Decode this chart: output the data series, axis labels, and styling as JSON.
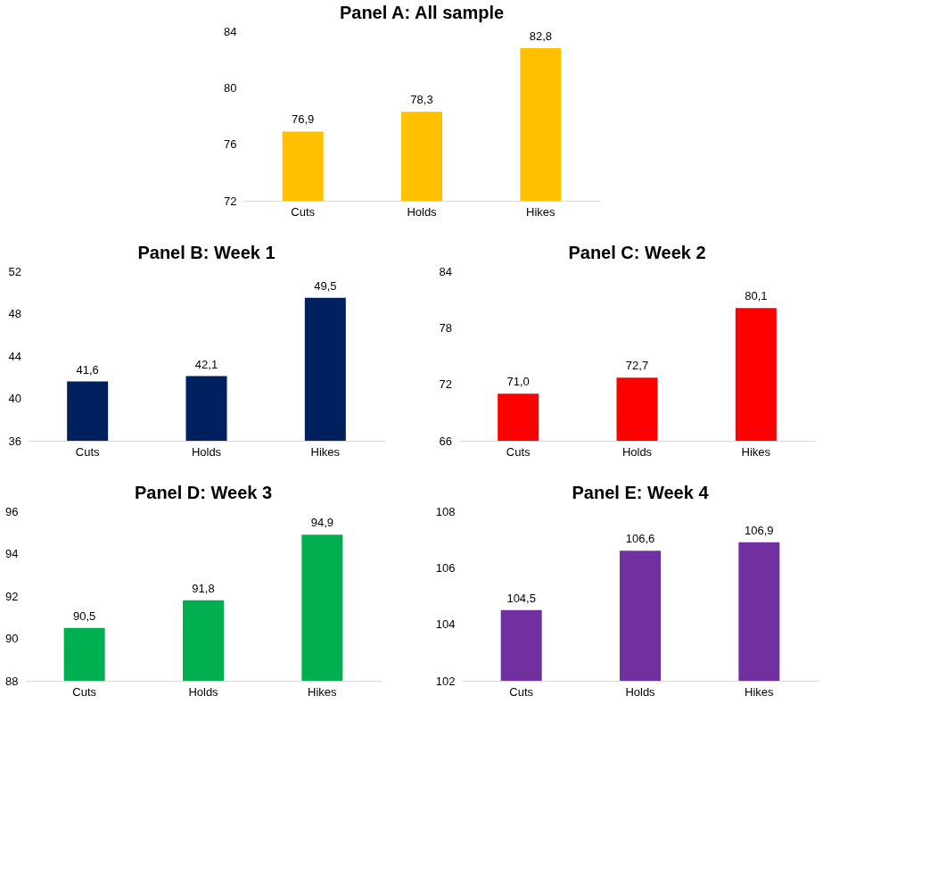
{
  "chart_data": [
    {
      "type": "bar",
      "title": "Panel A: All sample",
      "categories": [
        "Cuts",
        "Holds",
        "Hikes"
      ],
      "values": [
        76.9,
        78.3,
        82.8
      ],
      "value_labels": [
        "76,9",
        "78,3",
        "82,8"
      ],
      "color": "#ffc000",
      "ylim": [
        72,
        84
      ],
      "yticks": [
        72,
        76,
        80,
        84
      ],
      "grid": false
    },
    {
      "type": "bar",
      "title": "Panel B: Week 1",
      "categories": [
        "Cuts",
        "Holds",
        "Hikes"
      ],
      "values": [
        41.6,
        42.1,
        49.5
      ],
      "value_labels": [
        "41,6",
        "42,1",
        "49,5"
      ],
      "color": "#002060",
      "ylim": [
        36,
        52
      ],
      "yticks": [
        36,
        40,
        44,
        48,
        52
      ],
      "grid": false
    },
    {
      "type": "bar",
      "title": "Panel C: Week 2",
      "categories": [
        "Cuts",
        "Holds",
        "Hikes"
      ],
      "values": [
        71.0,
        72.7,
        80.1
      ],
      "value_labels": [
        "71,0",
        "72,7",
        "80,1"
      ],
      "color": "#ff0000",
      "ylim": [
        66,
        84
      ],
      "yticks": [
        66,
        72,
        78,
        84
      ],
      "grid": false
    },
    {
      "type": "bar",
      "title": "Panel D: Week 3",
      "categories": [
        "Cuts",
        "Holds",
        "Hikes"
      ],
      "values": [
        90.5,
        91.8,
        94.9
      ],
      "value_labels": [
        "90,5",
        "91,8",
        "94,9"
      ],
      "color": "#00b050",
      "ylim": [
        88,
        96
      ],
      "yticks": [
        88,
        90,
        92,
        94,
        96
      ],
      "grid": false
    },
    {
      "type": "bar",
      "title": "Panel E: Week 4",
      "categories": [
        "Cuts",
        "Holds",
        "Hikes"
      ],
      "values": [
        104.5,
        106.6,
        106.9
      ],
      "value_labels": [
        "104,5",
        "106,6",
        "106,9"
      ],
      "color": "#7030a0",
      "ylim": [
        102,
        108
      ],
      "yticks": [
        102,
        104,
        106,
        108
      ],
      "grid": false
    }
  ]
}
